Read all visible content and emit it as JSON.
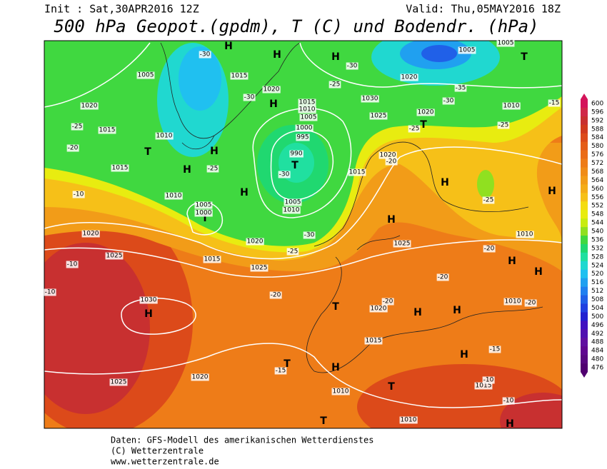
{
  "header": {
    "init": "Init : Sat,30APR2016 12Z",
    "valid": "Valid: Thu,05MAY2016 18Z",
    "title": "500 hPa Geopot.(gpdm), T (C) und Bodendr. (hPa)"
  },
  "colorbar": {
    "levels": [
      600,
      596,
      592,
      588,
      584,
      580,
      576,
      572,
      568,
      564,
      560,
      556,
      552,
      548,
      544,
      540,
      536,
      532,
      528,
      524,
      520,
      516,
      512,
      508,
      504,
      500,
      496,
      492,
      488,
      484,
      480,
      476
    ],
    "colors": [
      "#d4145a",
      "#d02848",
      "#c83030",
      "#d03a1e",
      "#dc4a1a",
      "#e45c18",
      "#ea6c18",
      "#ee7c18",
      "#f08c18",
      "#f29c18",
      "#f4ac18",
      "#f6c018",
      "#f4dc10",
      "#e8ec10",
      "#c8ec10",
      "#90e020",
      "#40d840",
      "#20d870",
      "#20e0a0",
      "#20d8d0",
      "#20c0f0",
      "#20a0f0",
      "#2080f0",
      "#2060e8",
      "#2040e0",
      "#2020d0",
      "#4010c0",
      "#5010b0",
      "#6010a0",
      "#600890",
      "#580880",
      "#500070"
    ]
  },
  "map_labels": [
    "H",
    "H",
    "H",
    "H",
    "H",
    "H",
    "H",
    "H",
    "H",
    "H",
    "H",
    "H",
    "H",
    "H",
    "H",
    "H",
    "H",
    "H",
    "T",
    "T",
    "T",
    "T",
    "T",
    "T",
    "T",
    "T",
    "T",
    "1005",
    "1020",
    "1015",
    "1010",
    "1015",
    "1020",
    "1015",
    "1010",
    "1005",
    "1000",
    "995",
    "990",
    "1030",
    "1025",
    "1020",
    "1020",
    "1015",
    "1010",
    "1005",
    "1000",
    "1005",
    "1010",
    "1015",
    "1020",
    "1020",
    "1025",
    "1015",
    "1020",
    "1025",
    "1030",
    "1025",
    "1010",
    "1020",
    "1010",
    "1015",
    "1020",
    "1025",
    "1010",
    "1015",
    "1010",
    "1005",
    "1005",
    "1010",
    "-30",
    "-25",
    "-30",
    "-30",
    "-25",
    "-35",
    "-30",
    "-25",
    "-25",
    "-15",
    "-20",
    "-25",
    "-10",
    "-30",
    "-25",
    "-20",
    "-25",
    "-30",
    "-10",
    "-10",
    "-20",
    "-20",
    "-20",
    "-20",
    "-15",
    "-15",
    "-10",
    "-10",
    "-20"
  ],
  "footer": [
    "Daten: GFS-Modell des amerikanischen Wetterdienstes",
    "(C) Wetterzentrale",
    "www.wetterzentrale.de"
  ]
}
